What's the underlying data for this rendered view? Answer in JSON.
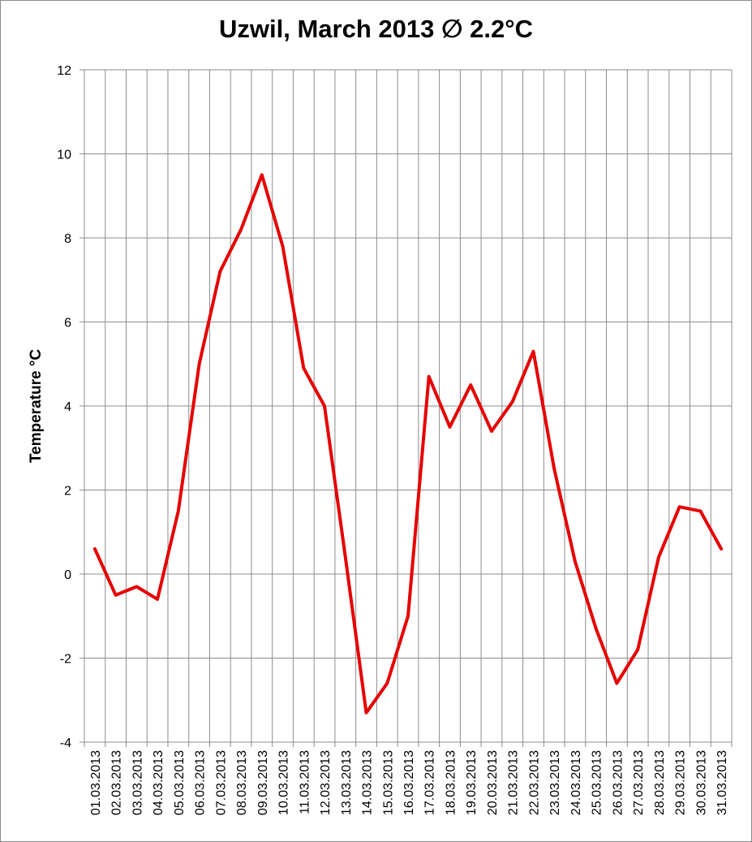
{
  "chart_data": {
    "type": "line",
    "title": "Uzwil, March 2013 ∅ 2.2°C",
    "xlabel": "",
    "ylabel": "Temperature °C",
    "ylim": [
      -4,
      12
    ],
    "yticks": [
      -4,
      -2,
      0,
      2,
      4,
      6,
      8,
      10,
      12
    ],
    "grid": true,
    "legend": "none",
    "categories": [
      "01.03.2013",
      "02.03.2013",
      "03.03.2013",
      "04.03.2013",
      "05.03.2013",
      "06.03.2013",
      "07.03.2013",
      "08.03.2013",
      "09.03.2013",
      "10.03.2013",
      "11.03.2013",
      "12.03.2013",
      "13.03.2013",
      "14.03.2013",
      "15.03.2013",
      "16.03.2013",
      "17.03.2013",
      "18.03.2013",
      "19.03.2013",
      "20.03.2013",
      "21.03.2013",
      "22.03.2013",
      "23.03.2013",
      "24.03.2013",
      "25.03.2013",
      "26.03.2013",
      "27.03.2013",
      "28.03.2013",
      "29.03.2013",
      "30.03.2013",
      "31.03.2013"
    ],
    "series": [
      {
        "color": "#e60000",
        "values": [
          0.6,
          -0.5,
          -0.3,
          -0.6,
          1.5,
          5.0,
          7.2,
          8.2,
          9.5,
          7.8,
          4.9,
          4.0,
          0.4,
          -3.3,
          -2.6,
          -1.0,
          4.7,
          3.5,
          4.5,
          3.4,
          4.1,
          5.3,
          2.5,
          0.3,
          -1.3,
          -2.6,
          -1.8,
          0.4,
          1.6,
          1.5,
          0.6
        ]
      }
    ]
  }
}
